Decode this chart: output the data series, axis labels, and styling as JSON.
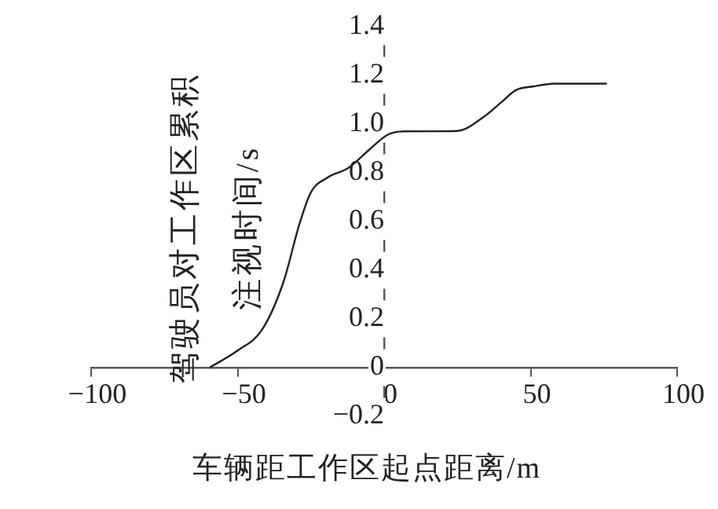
{
  "chart_data": {
    "type": "line",
    "xlabel": "车辆距工作区起点距离/m",
    "ylabel": "驾驶员对工作区累积注视时间/s",
    "x": [
      -59.6,
      -50,
      -41.7,
      -34.4,
      -28.9,
      -25,
      -19.4,
      -12.2,
      -4.6,
      1,
      6.5,
      25,
      34,
      40,
      45,
      51,
      58,
      76
    ],
    "series": [
      {
        "color": "#222222",
        "values": [
          0,
          0.07,
          0.155,
          0.35,
          0.59,
          0.72,
          0.78,
          0.82,
          0.9,
          0.955,
          0.97,
          0.972,
          1.03,
          1.09,
          1.14,
          1.155,
          1.166,
          1.166
        ]
      }
    ],
    "xlim": [
      -100,
      100
    ],
    "xticks": [
      -100,
      -50,
      0,
      50,
      100
    ],
    "ylim": [
      -0.2,
      1.4
    ],
    "yticks": [
      -0.2,
      0,
      0.2,
      0.4,
      0.6,
      0.8,
      {
        "value": 1,
        "label": "1.0"
      },
      1.2,
      1.4
    ],
    "grid": false,
    "legend": false,
    "marker": "none",
    "line_style": "solid"
  }
}
